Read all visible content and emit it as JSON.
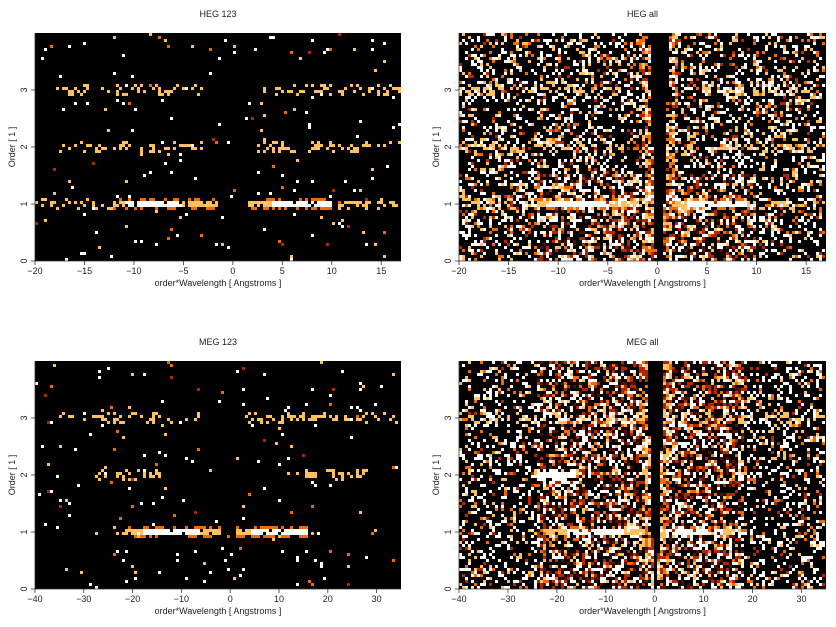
{
  "chart_data": [
    {
      "type": "heatmap",
      "title": "HEG 123",
      "xlabel": "order*Wavelength [ Angstroms ]",
      "ylabel": "Order [ 1 ]",
      "xlim": [
        -20,
        17
      ],
      "ylim": [
        0,
        4
      ],
      "xticks": [
        -20,
        -15,
        -10,
        -5,
        0,
        5,
        10,
        15
      ],
      "yticks": [
        0,
        1,
        2,
        3
      ],
      "background": "#000000",
      "colormap": [
        "#000000",
        "#5a0c00",
        "#b32600",
        "#f06a00",
        "#ffc060",
        "#ffffff"
      ],
      "bands": [
        {
          "order": 1,
          "x_ranges": [
            [
              -20,
              -1.5
            ],
            [
              1.5,
              17
            ]
          ],
          "bright_ranges": [
            [
              -12,
              -1.5
            ],
            [
              1.5,
              10
            ]
          ],
          "peak": [
            -8,
            7
          ]
        },
        {
          "order": 2,
          "x_ranges": [
            [
              -18,
              -3
            ],
            [
              2.5,
              17
            ]
          ],
          "bright_ranges": [],
          "peak": []
        },
        {
          "order": 3,
          "x_ranges": [
            [
              -18,
              -3
            ],
            [
              3,
              17
            ]
          ],
          "bright_ranges": [],
          "peak": []
        }
      ],
      "scatter_density": 0.02,
      "wedge": false
    },
    {
      "type": "heatmap",
      "title": "HEG all",
      "xlabel": "order*Wavelength [ Angstroms ]",
      "ylabel": "Order [ 1 ]",
      "xlim": [
        -20,
        17
      ],
      "ylim": [
        0,
        4
      ],
      "xticks": [
        -20,
        -15,
        -10,
        -5,
        0,
        5,
        10,
        15
      ],
      "yticks": [
        0,
        1,
        2,
        3
      ],
      "background": "#000000",
      "colormap": [
        "#000000",
        "#5a0c00",
        "#b32600",
        "#f06a00",
        "#ffc060",
        "#ffffff"
      ],
      "bands": [
        {
          "order": 1,
          "x_ranges": [
            [
              -20,
              -1
            ],
            [
              1,
              17
            ]
          ],
          "bright_ranges": [
            [
              -12,
              -1.5
            ],
            [
              1.5,
              10
            ]
          ],
          "peak": [
            -8,
            6
          ]
        },
        {
          "order": 2,
          "x_ranges": [
            [
              -20,
              -3
            ],
            [
              3,
              17
            ]
          ],
          "bright_ranges": [],
          "peak": []
        },
        {
          "order": 3,
          "x_ranges": [
            [
              -20,
              -3
            ],
            [
              3,
              17
            ]
          ],
          "bright_ranges": [],
          "peak": []
        }
      ],
      "scatter_density": 0.32,
      "wedge": true,
      "block": {
        "x": [
          -12,
          10
        ],
        "y": [
          0,
          1.5
        ]
      }
    },
    {
      "type": "heatmap",
      "title": "MEG 123",
      "xlabel": "order*Wavelength [ Angstroms ]",
      "ylabel": "Order [ 1 ]",
      "xlim": [
        -40,
        35
      ],
      "ylim": [
        0,
        4
      ],
      "xticks": [
        -40,
        -30,
        -20,
        -10,
        0,
        10,
        20,
        30
      ],
      "yticks": [
        0,
        1,
        2,
        3
      ],
      "background": "#000000",
      "colormap": [
        "#000000",
        "#5a0c00",
        "#b32600",
        "#f06a00",
        "#ffc060",
        "#ffffff"
      ],
      "bands": [
        {
          "order": 1,
          "x_ranges": [
            [
              -25,
              -2
            ],
            [
              1,
              18
            ]
          ],
          "bright_ranges": [
            [
              -22,
              -2
            ],
            [
              1,
              16
            ]
          ],
          "peak": [
            -12,
            10
          ]
        },
        {
          "order": 2,
          "x_ranges": [
            [
              -28,
              -14
            ],
            [
              13,
              28
            ]
          ],
          "bright_ranges": [],
          "peak": []
        },
        {
          "order": 3,
          "x_ranges": [
            [
              -35,
              -6
            ],
            [
              3,
              35
            ]
          ],
          "bright_ranges": [],
          "peak": []
        }
      ],
      "scatter_density": 0.02,
      "wedge": false
    },
    {
      "type": "heatmap",
      "title": "MEG all",
      "xlabel": "order*Wavelength [ Angstroms ]",
      "ylabel": "Order [ 1 ]",
      "xlim": [
        -40,
        35
      ],
      "ylim": [
        0,
        4
      ],
      "xticks": [
        -40,
        -30,
        -20,
        -10,
        0,
        10,
        20,
        30
      ],
      "yticks": [
        0,
        1,
        2,
        3
      ],
      "background": "#000000",
      "colormap": [
        "#000000",
        "#5a0c00",
        "#b32600",
        "#f06a00",
        "#ffc060",
        "#ffffff"
      ],
      "bands": [
        {
          "order": 1,
          "x_ranges": [
            [
              -25,
              -2
            ],
            [
              1,
              18
            ]
          ],
          "bright_ranges": [
            [
              -22,
              -2
            ],
            [
              1,
              16
            ]
          ],
          "peak": [
            -12,
            8
          ]
        },
        {
          "order": 2,
          "x_ranges": [
            [
              -25,
              -14
            ],
            [
              15,
              20
            ]
          ],
          "bright_ranges": [
            [
              -24,
              -16
            ]
          ],
          "peak": [
            -20
          ]
        },
        {
          "order": 3,
          "x_ranges": [
            [
              -38,
              -6
            ],
            [
              3,
              35
            ]
          ],
          "bright_ranges": [],
          "peak": []
        }
      ],
      "scatter_density": 0.3,
      "wedge": true,
      "block": {
        "x": [
          -24,
          18
        ],
        "y": [
          0,
          4
        ]
      }
    }
  ]
}
